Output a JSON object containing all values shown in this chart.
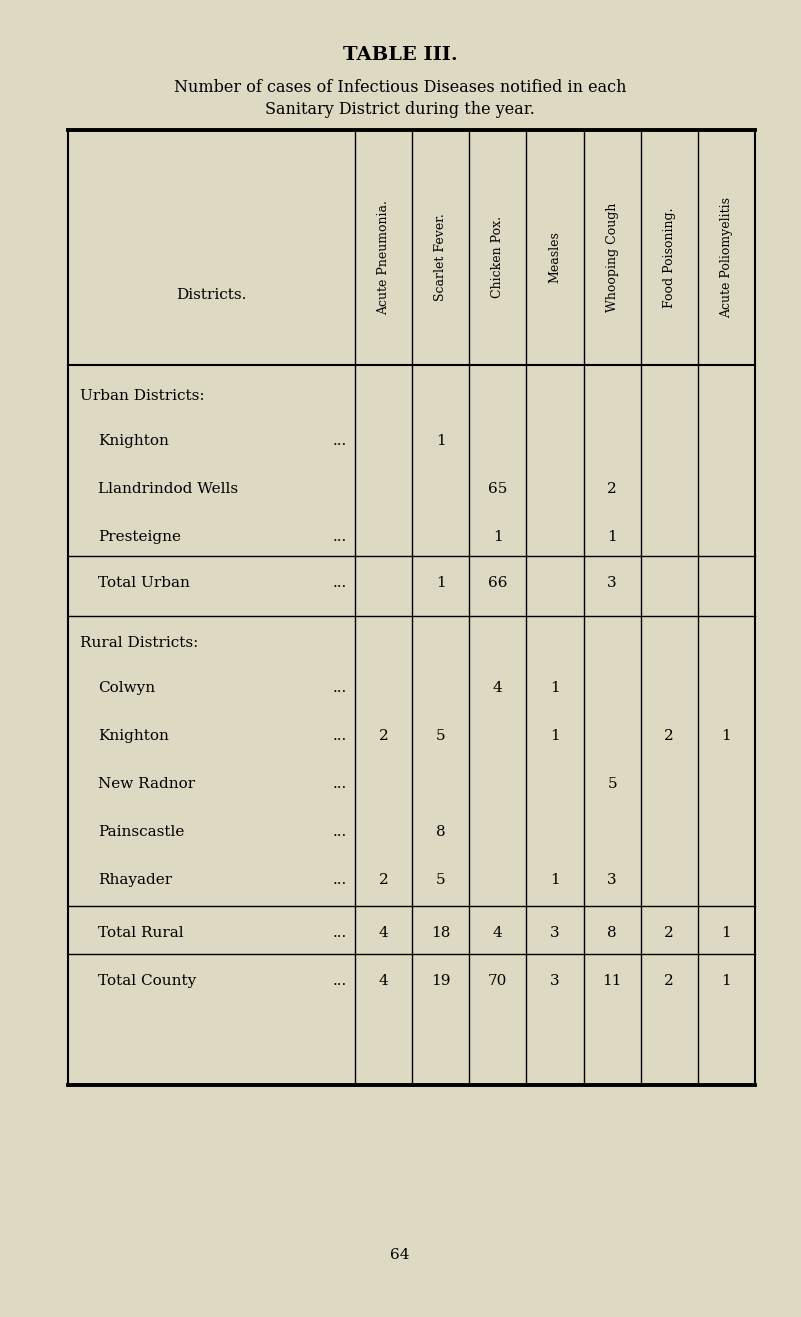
{
  "title": "TABLE III.",
  "subtitle1": "Number of cases of Infectious Diseases notified in each",
  "subtitle2": "Sanitary District during the year.",
  "page_number": "64",
  "bg_color": "#ddd9c3",
  "columns": [
    "Acute Pneumonia.",
    "Scarlet Fever.",
    "Chicken Pox.",
    "Measles",
    "Whooping Cough",
    "Food Poisoning.",
    "Acute Poliomyelitis"
  ],
  "rows": [
    {
      "label": "Urban Districts:",
      "indent": 0,
      "dots": false,
      "is_section": true,
      "values": [
        "",
        "",
        "",
        "",
        "",
        "",
        ""
      ]
    },
    {
      "label": "Knighton",
      "indent": 1,
      "dots": true,
      "is_section": false,
      "values": [
        "",
        "1",
        "",
        "",
        "",
        "",
        ""
      ]
    },
    {
      "label": "Llandrindod Wells",
      "indent": 1,
      "dots": false,
      "is_section": false,
      "values": [
        "",
        "",
        "65",
        "",
        "2",
        "",
        ""
      ]
    },
    {
      "label": "Presteigne",
      "indent": 1,
      "dots": true,
      "is_section": false,
      "values": [
        "",
        "",
        "1",
        "",
        "1",
        "",
        ""
      ]
    },
    {
      "label": "Total Urban",
      "indent": 1,
      "dots": true,
      "is_section": false,
      "is_total": true,
      "values": [
        "",
        "1",
        "66",
        "",
        "3",
        "",
        ""
      ]
    },
    {
      "label": "Rural Districts:",
      "indent": 0,
      "dots": false,
      "is_section": true,
      "values": [
        "",
        "",
        "",
        "",
        "",
        "",
        ""
      ]
    },
    {
      "label": "Colwyn",
      "indent": 1,
      "dots": true,
      "is_section": false,
      "values": [
        "",
        "",
        "4",
        "1",
        "",
        "",
        ""
      ]
    },
    {
      "label": "Knighton",
      "indent": 1,
      "dots": true,
      "is_section": false,
      "values": [
        "2",
        "5",
        "",
        "1",
        "",
        "2",
        "1"
      ]
    },
    {
      "label": "New Radnor",
      "indent": 1,
      "dots": true,
      "is_section": false,
      "values": [
        "",
        "",
        "",
        "",
        "5",
        "",
        ""
      ]
    },
    {
      "label": "Painscastle",
      "indent": 1,
      "dots": true,
      "is_section": false,
      "values": [
        "",
        "8",
        "",
        "",
        "",
        "",
        ""
      ]
    },
    {
      "label": "Rhayader",
      "indent": 1,
      "dots": true,
      "is_section": false,
      "values": [
        "2",
        "5",
        "",
        "1",
        "3",
        "",
        ""
      ]
    },
    {
      "label": "Total Rural",
      "indent": 1,
      "dots": true,
      "is_section": false,
      "is_total": true,
      "values": [
        "4",
        "18",
        "4",
        "3",
        "8",
        "2",
        "1"
      ]
    },
    {
      "label": "Total County",
      "indent": 1,
      "dots": true,
      "is_section": false,
      "is_total": true,
      "values": [
        "4",
        "19",
        "70",
        "3",
        "11",
        "2",
        "1"
      ]
    }
  ],
  "fig_width": 8.01,
  "fig_height": 13.17,
  "dpi": 100
}
